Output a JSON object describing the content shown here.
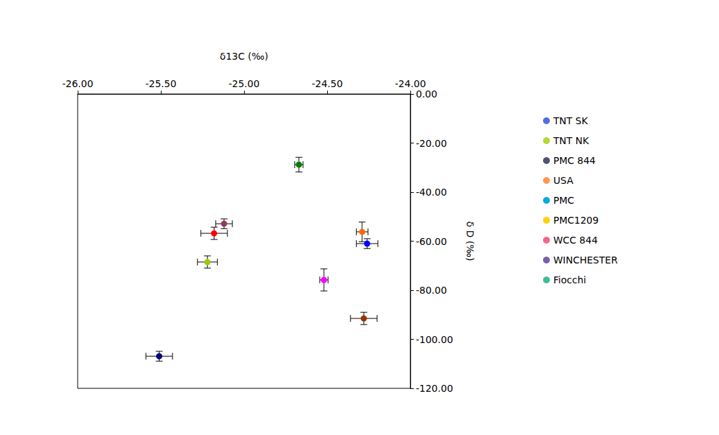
{
  "chart_data": {
    "type": "scatter",
    "x_label": "δ13C (‰)",
    "y_label": "δ D (‰)",
    "xlim": [
      -26,
      -24
    ],
    "xticks": [
      {
        "value": -26,
        "label": "-26.00"
      },
      {
        "value": -25.5,
        "label": "-25.50"
      },
      {
        "value": -25,
        "label": "-25.00"
      },
      {
        "value": -24.5,
        "label": "-24.50"
      },
      {
        "value": -24,
        "label": "-24.00"
      }
    ],
    "ylim": [
      -120,
      0
    ],
    "yticks": [
      {
        "value": -120,
        "label": "-120.00"
      },
      {
        "value": -100,
        "label": "-100.00"
      },
      {
        "value": -80,
        "label": "-80.00"
      },
      {
        "value": -60,
        "label": "-60.00"
      },
      {
        "value": -40,
        "label": "-40.00"
      },
      {
        "value": -20,
        "label": "-20.00"
      },
      {
        "value": 0,
        "label": "0.00"
      }
    ],
    "grid": false,
    "legend": "right",
    "marker": "circle",
    "series": [
      {
        "name": "TNT SK",
        "color": "#000080",
        "x": [
          -25.51
        ],
        "values": [
          -106.9
        ],
        "x_error": [
          0.08
        ],
        "y_error": [
          2
        ]
      },
      {
        "name": "TNT NK",
        "color": "#ff00ff",
        "x": [
          -24.52
        ],
        "values": [
          -75.8
        ],
        "x_error": [
          0.025
        ],
        "y_error": [
          4.5
        ]
      },
      {
        "name": "PMC 844",
        "color": "#0000ff",
        "x": [
          -24.26
        ],
        "values": [
          -61
        ],
        "x_error": [
          0.065
        ],
        "y_error": [
          2
        ]
      },
      {
        "name": "USA",
        "color": "#993300",
        "x": [
          -24.28
        ],
        "values": [
          -91.5
        ],
        "x_error": [
          0.08
        ],
        "y_error": [
          2.5
        ]
      },
      {
        "name": "PMC",
        "color": "#99cc00",
        "x": [
          -25.22
        ],
        "values": [
          -68.5
        ],
        "x_error": [
          0.06
        ],
        "y_error": [
          2.5
        ]
      },
      {
        "name": "PMC1209",
        "color": "#008000",
        "x": [
          -24.67
        ],
        "values": [
          -28.8
        ],
        "x_error": [
          0.025
        ],
        "y_error": [
          3
        ]
      },
      {
        "name": "WCC 844",
        "color": "#ff6600",
        "x": [
          -24.29
        ],
        "values": [
          -56.2
        ],
        "x_error": [
          0.035
        ],
        "y_error": [
          4
        ]
      },
      {
        "name": "WINCHESTER",
        "color": "#993366",
        "x": [
          -25.12
        ],
        "values": [
          -52.9
        ],
        "x_error": [
          0.05
        ],
        "y_error": [
          2
        ]
      },
      {
        "name": "Fiocchi",
        "color": "#ff0000",
        "x": [
          -25.18
        ],
        "values": [
          -56.8
        ],
        "x_error": [
          0.08
        ],
        "y_error": [
          2.5
        ]
      }
    ]
  }
}
